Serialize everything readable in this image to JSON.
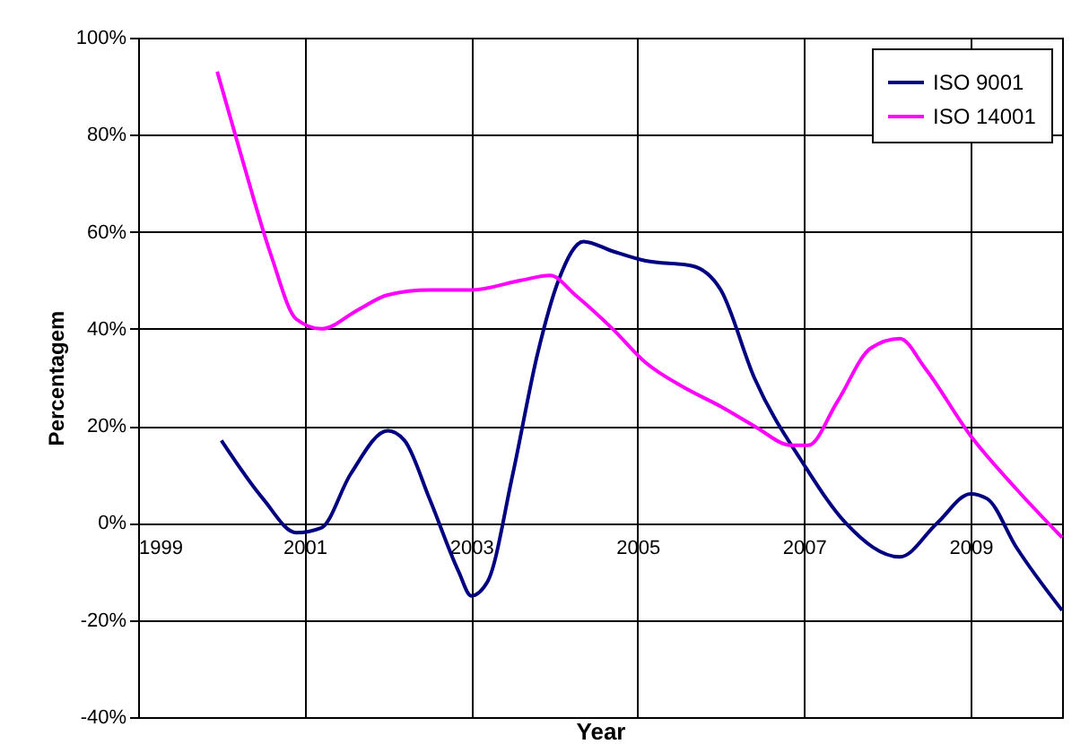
{
  "chart_data": {
    "type": "line",
    "xlabel": "Year",
    "ylabel": "Percentagem",
    "xlim": [
      1999,
      2010.1
    ],
    "xticks": [
      1999,
      2001,
      2003,
      2005,
      2007,
      2009
    ],
    "ylim": [
      -40,
      100
    ],
    "yticks": [
      {
        "value": -40,
        "label": "-40%"
      },
      {
        "value": -20,
        "label": "-20%"
      },
      {
        "value": 0,
        "label": "0%"
      },
      {
        "value": 20,
        "label": "20%"
      },
      {
        "value": 40,
        "label": "40%"
      },
      {
        "value": 60,
        "label": "60%"
      },
      {
        "value": 80,
        "label": "80%"
      },
      {
        "value": 100,
        "label": "100%"
      }
    ],
    "grid": true,
    "legend": "top right",
    "marker": "none",
    "line_style": "solid",
    "series": [
      {
        "name": "ISO 9001",
        "color": "#000080",
        "x": [
          2000.0,
          2000.5,
          2000.9,
          2001.2,
          2001.55,
          2002.0,
          2002.2,
          2002.5,
          2002.85,
          2003.0,
          2003.2,
          2003.5,
          2003.8,
          2004.05,
          2004.35,
          2004.7,
          2005.1,
          2005.65,
          2006.0,
          2006.4,
          2007.0,
          2007.5,
          2008.15,
          2008.6,
          2009.0,
          2009.2,
          2009.55,
          2010.1
        ],
        "values": [
          17,
          5,
          -2,
          -1,
          10,
          19,
          17,
          5,
          -10,
          -15,
          -12,
          10,
          35,
          50,
          58,
          56,
          54,
          53,
          48,
          30,
          12,
          0,
          -7,
          0,
          6,
          5,
          -5,
          -18
        ]
      },
      {
        "name": "ISO 14001",
        "color": "#ff00ff",
        "x": [
          1999.95,
          2000.25,
          2000.6,
          2000.9,
          2001.2,
          2001.65,
          2002.0,
          2002.5,
          2003.0,
          2003.6,
          2003.95,
          2004.25,
          2004.7,
          2005.1,
          2005.55,
          2006.0,
          2006.4,
          2006.85,
          2007.05,
          2007.4,
          2007.8,
          2008.15,
          2008.45,
          2009.0,
          2009.55,
          2010.1
        ],
        "values": [
          93,
          75,
          55,
          42,
          40,
          44,
          47,
          48,
          48,
          50,
          51,
          47,
          40,
          33,
          28,
          24,
          20,
          16,
          16,
          25,
          36,
          38,
          32,
          18,
          7,
          -3
        ]
      }
    ]
  }
}
